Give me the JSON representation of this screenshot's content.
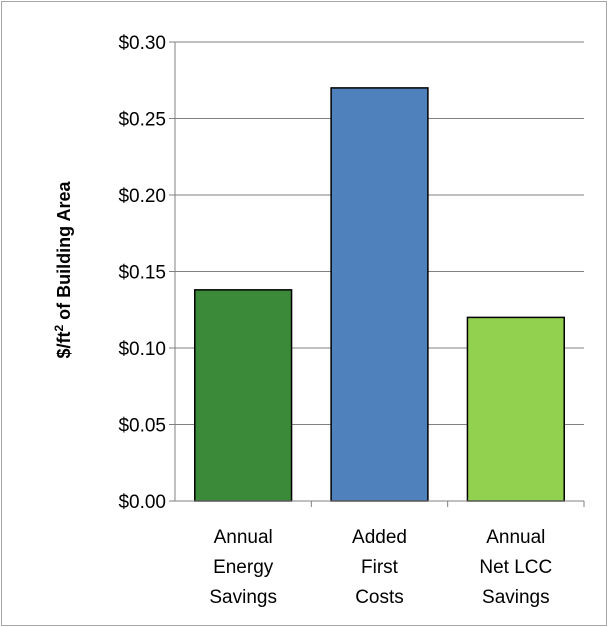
{
  "chart_data": {
    "type": "bar",
    "categories": [
      [
        "Annual",
        "Energy",
        "Savings"
      ],
      [
        "Added",
        "First",
        "Costs"
      ],
      [
        "Annual",
        "Net LCC",
        "Savings"
      ]
    ],
    "values": [
      0.138,
      0.27,
      0.12
    ],
    "bar_colors": [
      "#3a8a3a",
      "#4f81bd",
      "#92d050"
    ],
    "title": "",
    "xlabel": "",
    "ylabel_parts": {
      "prefix": "$/ft",
      "superscript": "2",
      "suffix": " of Building Area"
    },
    "ylim": [
      0,
      0.3
    ],
    "yticks": [
      {
        "value": 0.0,
        "label": "$0.00"
      },
      {
        "value": 0.05,
        "label": "$0.05"
      },
      {
        "value": 0.1,
        "label": "$0.10"
      },
      {
        "value": 0.15,
        "label": "$0.15"
      },
      {
        "value": 0.2,
        "label": "$0.20"
      },
      {
        "value": 0.25,
        "label": "$0.25"
      },
      {
        "value": 0.3,
        "label": "$0.30"
      }
    ],
    "grid": true,
    "gridline_color": "#808080",
    "bar_outline_color": "#000000"
  }
}
